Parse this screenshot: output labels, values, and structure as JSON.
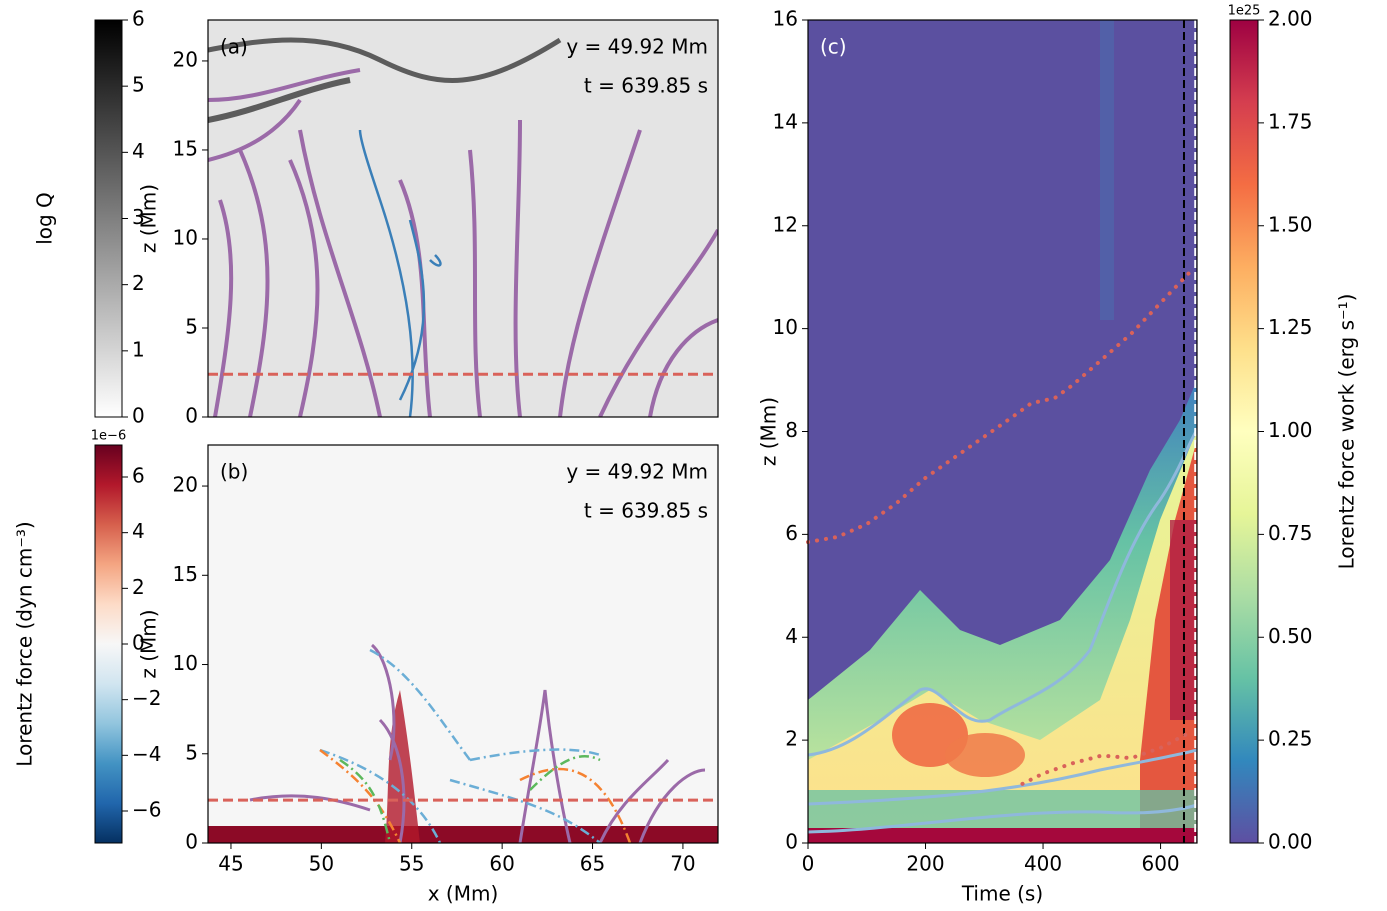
{
  "chart_data": [
    {
      "type": "heatmap",
      "label": "(a)",
      "annotations": [
        "y = 49.92 Mm",
        "t = 639.85 s"
      ],
      "ylabel": "z (Mm)",
      "xlim": [
        43.73,
        71.94
      ],
      "ylim": [
        0,
        22.3
      ],
      "yticks": [
        0,
        5,
        10,
        15,
        20
      ],
      "hline": {
        "value": 2.4,
        "color": "#d9625a"
      }
    },
    {
      "type": "heatmap",
      "label": "(b)",
      "annotations": [
        "y = 49.92 Mm",
        "t = 639.85 s"
      ],
      "xlabel": "x (Mm)",
      "ylabel": "z (Mm)",
      "xlim": [
        43.73,
        71.94
      ],
      "ylim": [
        0,
        22.3
      ],
      "xticks": [
        45,
        50,
        55,
        60,
        65,
        70
      ],
      "yticks": [
        0,
        5,
        10,
        15,
        20
      ],
      "hline": {
        "value": 2.4,
        "color": "#d9625a"
      }
    },
    {
      "type": "heatmap",
      "label": "(c)",
      "xlabel": "Time (s)",
      "ylabel": "z (Mm)",
      "xlim": [
        0,
        662
      ],
      "ylim": [
        0,
        16
      ],
      "xticks": [
        0,
        200,
        400,
        600
      ],
      "yticks": [
        0,
        2,
        4,
        6,
        8,
        10,
        12,
        14,
        16
      ],
      "vlines": [
        {
          "value": 639.85,
          "color": "#000000"
        },
        {
          "value": 659,
          "color": "#ffffff"
        }
      ],
      "series": [
        {
          "color": "#d9625a",
          "x": [
            0,
            50,
            100,
            150,
            200,
            250,
            300,
            350,
            380,
            420,
            450,
            500,
            550,
            600,
            650
          ],
          "values": [
            5.85,
            5.95,
            6.2,
            6.6,
            7.1,
            7.5,
            7.9,
            8.3,
            8.55,
            8.65,
            8.9,
            9.4,
            9.9,
            10.5,
            11.1
          ]
        },
        {
          "color": "#d9625a",
          "x": [
            365,
            400,
            450,
            500,
            550,
            600,
            650
          ],
          "values": [
            1.15,
            1.35,
            1.55,
            1.7,
            1.65,
            1.85,
            2.15
          ]
        }
      ]
    },
    {
      "type": "colorbar",
      "label": "log Q",
      "lim": [
        0,
        6
      ],
      "ticks": [
        0,
        1,
        2,
        3,
        4,
        5,
        6
      ],
      "colors": [
        "#ffffff",
        "#000000"
      ]
    },
    {
      "type": "colorbar",
      "label": "Lorentz force (dyn cm⁻³)",
      "offset": "1e−6",
      "lim": [
        -7.15,
        7.15
      ],
      "ticks": [
        {
          "value": -6,
          "label": "−6"
        },
        {
          "value": -4,
          "label": "−4"
        },
        {
          "value": -2,
          "label": "−2"
        },
        0,
        2,
        4,
        6
      ],
      "colors": [
        "#053061",
        "#2166ac",
        "#4393c3",
        "#92c5de",
        "#d1e5f0",
        "#f7f7f7",
        "#fddbc7",
        "#f4a582",
        "#d6604d",
        "#b2182b",
        "#67001f"
      ]
    },
    {
      "type": "colorbar",
      "label": "Lorentz force work (erg s⁻¹)",
      "offset": "1e25",
      "lim": [
        0,
        2
      ],
      "ticks": [
        {
          "value": 0,
          "label": "0.00"
        },
        {
          "value": 0.25,
          "label": "0.25"
        },
        {
          "value": 0.5,
          "label": "0.50"
        },
        {
          "value": 0.75,
          "label": "0.75"
        },
        {
          "value": 1,
          "label": "1.00"
        },
        {
          "value": 1.25,
          "label": "1.25"
        },
        {
          "value": 1.5,
          "label": "1.50"
        },
        {
          "value": 1.75,
          "label": "1.75"
        },
        {
          "value": 2,
          "label": "2.00"
        }
      ],
      "colors": [
        "#5e4fa2",
        "#3288bd",
        "#66c2a5",
        "#abdda4",
        "#e6f598",
        "#ffffbf",
        "#fee08b",
        "#fdae61",
        "#f46d43",
        "#d53e4f",
        "#9e0142"
      ]
    }
  ]
}
